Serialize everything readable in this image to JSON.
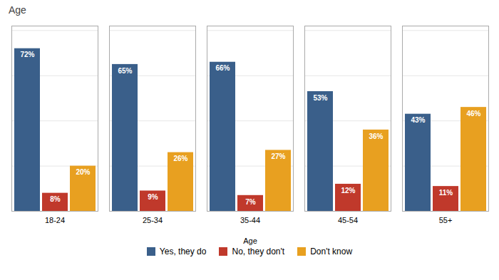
{
  "chart_data": {
    "type": "bar",
    "title": "Age",
    "xlabel": "Age",
    "categories": [
      "18-24",
      "25-34",
      "35-44",
      "45-54",
      "55+"
    ],
    "series": [
      {
        "name": "Yes, they do",
        "color": "#3A5F8A",
        "values": [
          72,
          65,
          66,
          53,
          43
        ],
        "value_labels": [
          "72%",
          "65%",
          "66%",
          "53%",
          "43%"
        ]
      },
      {
        "name": "No, they don't",
        "color": "#C0392B",
        "values": [
          8,
          9,
          7,
          12,
          11
        ],
        "value_labels": [
          "8%",
          "9%",
          "7%",
          "12%",
          "11%"
        ]
      },
      {
        "name": "Don't know",
        "color": "#E8A020",
        "values": [
          20,
          26,
          27,
          36,
          46
        ],
        "value_labels": [
          "20%",
          "26%",
          "27%",
          "36%",
          "46%"
        ]
      }
    ],
    "ylim": [
      0,
      82
    ],
    "yticks": [
      20,
      40,
      60,
      80
    ],
    "grid": true,
    "tick_labels": "x",
    "data_labels": true,
    "legend": "bottom"
  }
}
